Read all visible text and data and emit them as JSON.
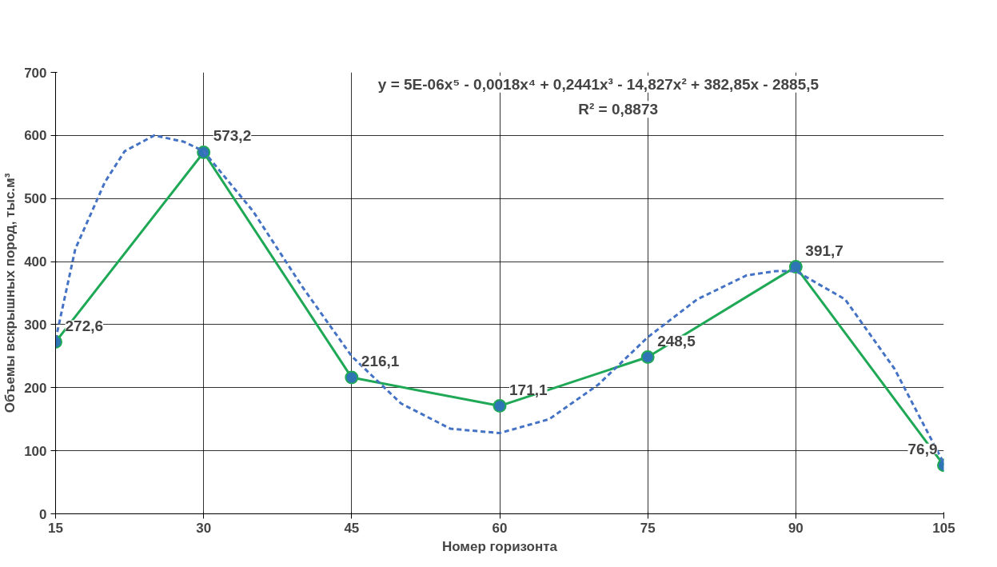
{
  "chart_data": {
    "type": "line",
    "xlabel": "Номер горизонта",
    "ylabel": "Объемы вскрышных пород, тыс.м³",
    "xlim": [
      15,
      105
    ],
    "xticks": [
      15,
      30,
      45,
      60,
      75,
      90,
      105
    ],
    "ylim": [
      0,
      700
    ],
    "yticks": [
      0,
      100,
      200,
      300,
      400,
      500,
      600,
      700
    ],
    "grid": true,
    "series": [
      {
        "color": "#1fa855",
        "marker": "circle",
        "line_style": "solid",
        "x": [
          15,
          30,
          45,
          60,
          75,
          90,
          105
        ],
        "values": [
          272.6,
          573.2,
          216.1,
          171.1,
          248.5,
          391.7,
          76.9
        ],
        "value_labels": [
          "272,6",
          "573,2",
          "216,1",
          "171,1",
          "248,5",
          "391,7",
          "76,9"
        ]
      },
      {
        "color": "#4472c4",
        "marker": "none",
        "line_style": "dashed",
        "x": [
          15,
          17,
          20,
          22,
          25,
          28,
          30,
          35,
          40,
          45,
          50,
          55,
          60,
          65,
          70,
          75,
          80,
          85,
          88,
          90,
          95,
          100,
          105
        ],
        "values": [
          276,
          420,
          526,
          575,
          600,
          590,
          575,
          480,
          360,
          250,
          175,
          135,
          128,
          150,
          205,
          280,
          340,
          378,
          385,
          385,
          340,
          230,
          80
        ]
      }
    ],
    "annotations": [
      "y = 5E-06x⁵ - 0,0018x⁴ + 0,2441x³ - 14,827x² + 382,85x - 2885,5",
      "R² = 0,8873"
    ]
  }
}
